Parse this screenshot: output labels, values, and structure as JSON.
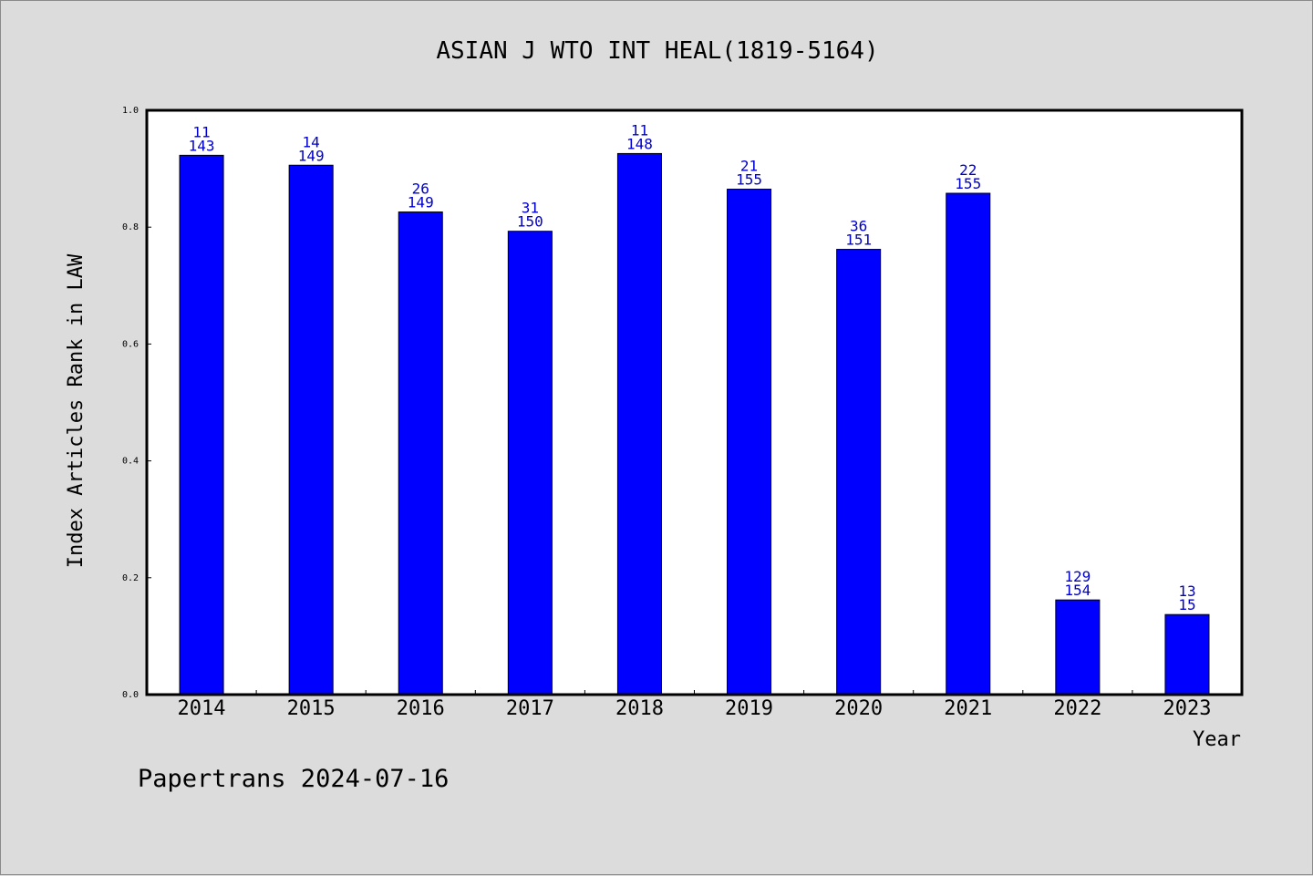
{
  "chart_data": {
    "type": "bar",
    "title": "ASIAN J WTO INT HEAL(1819-5164)",
    "xlabel": "Year",
    "ylabel": "Index Articles Rank in LAW",
    "ylim": [
      0,
      1.0
    ],
    "yticks": [
      "0.0",
      "0.2",
      "0.4",
      "0.6",
      "0.8",
      "1.0"
    ],
    "grid": false,
    "categories": [
      "2014",
      "2015",
      "2016",
      "2017",
      "2018",
      "2019",
      "2020",
      "2021",
      "2022",
      "2023"
    ],
    "values": [
      0.923,
      0.906,
      0.826,
      0.793,
      0.926,
      0.865,
      0.762,
      0.858,
      0.162,
      0.137
    ],
    "labels_top": [
      "11",
      "14",
      "26",
      "31",
      "11",
      "21",
      "36",
      "22",
      "129",
      "13"
    ],
    "labels_bottom": [
      "143",
      "149",
      "149",
      "150",
      "148",
      "155",
      "151",
      "155",
      "154",
      "15"
    ],
    "bar_color": "#0000ff",
    "label_color": "#0000cc"
  },
  "footer": "Papertrans 2024-07-16"
}
